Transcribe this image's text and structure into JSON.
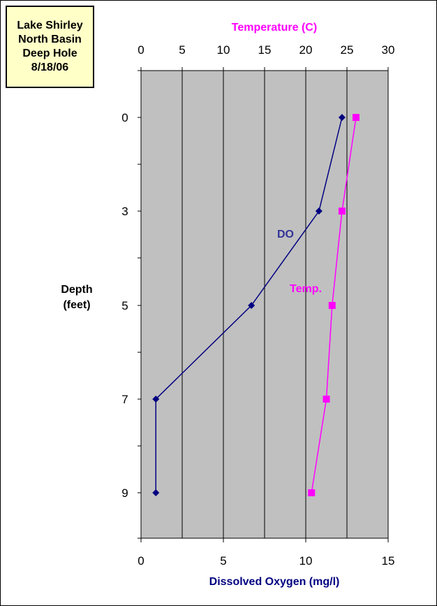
{
  "title_box": {
    "lines": [
      "Lake Shirley",
      "North Basin",
      "Deep Hole",
      "8/18/06"
    ]
  },
  "depth_label": {
    "lines": [
      "Depth",
      "(feet)"
    ]
  },
  "chart_data": {
    "type": "line",
    "y_axis": {
      "label": "Depth (feet)",
      "ticks": [
        0,
        3,
        5,
        7,
        9
      ],
      "reversed": true
    },
    "x_axis_top": {
      "label": "Temperature (C)",
      "range": [
        0,
        30
      ],
      "ticks": [
        0,
        5,
        10,
        15,
        20,
        25,
        30
      ]
    },
    "x_axis_bottom": {
      "label": "Dissolved Oxygen (mg/l)",
      "range": [
        0,
        15
      ],
      "ticks": [
        0,
        5,
        10,
        15
      ]
    },
    "depths": [
      0,
      3,
      5,
      7,
      9
    ],
    "series": [
      {
        "name": "DO",
        "axis": "bottom",
        "color": "#000080",
        "marker": "diamond",
        "values": [
          12.2,
          10.8,
          6.7,
          0.9,
          0.9
        ]
      },
      {
        "name": "Temp.",
        "axis": "top",
        "color": "#ff00ff",
        "marker": "square",
        "values": [
          26.1,
          24.4,
          23.2,
          22.5,
          20.7
        ]
      }
    ],
    "plot_background": "#c0c0c0",
    "grid": "vertical"
  }
}
